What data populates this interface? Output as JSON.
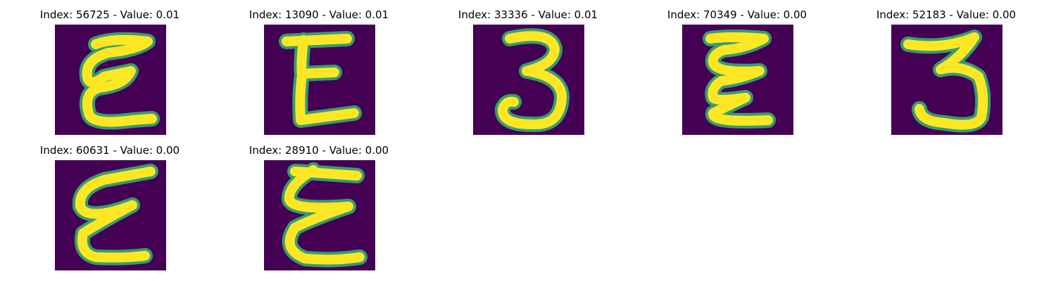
{
  "figure": {
    "colors": {
      "background": "#440154",
      "stroke_core": "#fde725",
      "stroke_edge": "#35b779",
      "stroke_mid": "#21918c"
    },
    "panels": [
      {
        "title": "Index: 56725 - Value: 0.01",
        "glyph": "E"
      },
      {
        "title": "Index: 13090 - Value: 0.01",
        "glyph": "E"
      },
      {
        "title": "Index: 33336 - Value: 0.01",
        "glyph": "3"
      },
      {
        "title": "Index: 70349 - Value: 0.00",
        "glyph": "E"
      },
      {
        "title": "Index: 52183 - Value: 0.00",
        "glyph": "3"
      },
      {
        "title": "Index: 60631 - Value: 0.00",
        "glyph": "E"
      },
      {
        "title": "Index: 28910 - Value: 0.00",
        "glyph": "E"
      }
    ]
  }
}
